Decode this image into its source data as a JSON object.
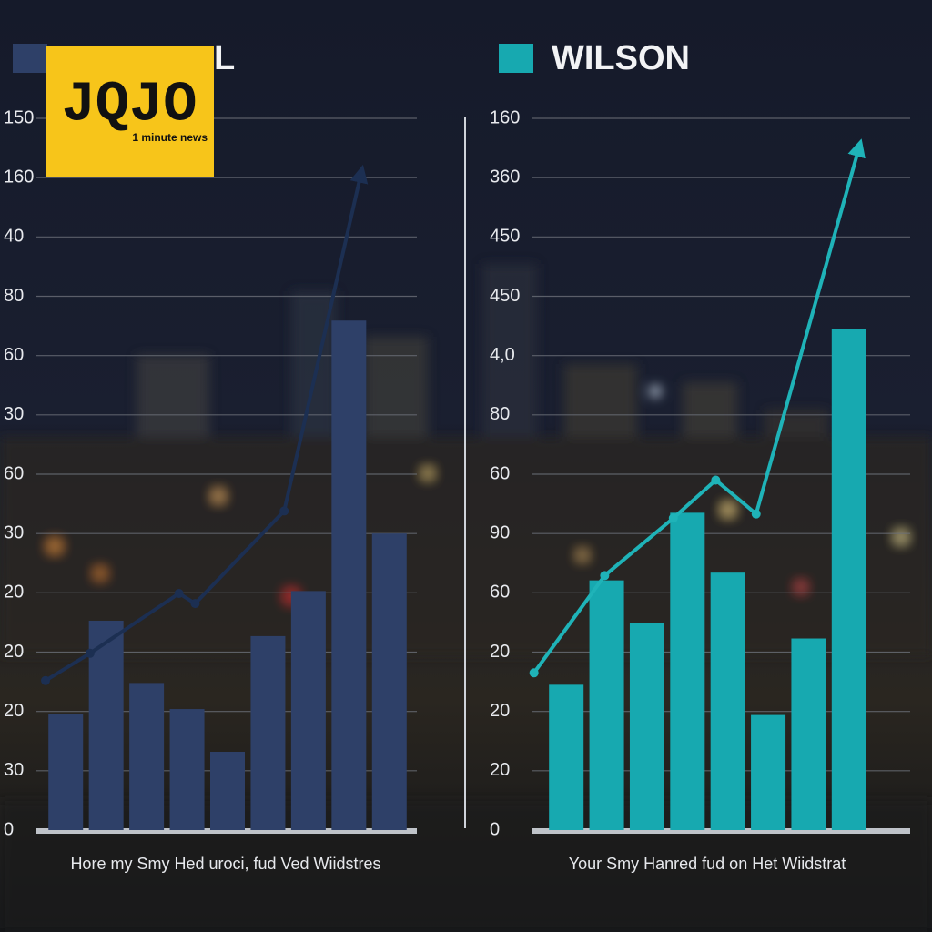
{
  "logo": {
    "text": "JQJO",
    "tagline": "1 minute news"
  },
  "chart_data": [
    {
      "type": "bar",
      "xlabel": "Hore my Smy Hed uroci, fud Ved Wiidstres",
      "categories": [
        null,
        null,
        null,
        null,
        null,
        null,
        null,
        null,
        null
      ],
      "ylim": [
        0,
        12
      ],
      "yticks": [
        {
          "value": 0,
          "label": "0"
        },
        {
          "value": 1,
          "label": "30"
        },
        {
          "value": 2,
          "label": "20"
        },
        {
          "value": 3,
          "label": "20"
        },
        {
          "value": 4,
          "label": "20"
        },
        {
          "value": 5,
          "label": "30"
        },
        {
          "value": 6,
          "label": "60"
        },
        {
          "value": 7,
          "label": "30"
        },
        {
          "value": 8,
          "label": "60"
        },
        {
          "value": 9,
          "label": "80"
        },
        {
          "value": 10,
          "label": "40"
        },
        {
          "value": 11,
          "label": "160"
        },
        {
          "value": 12,
          "label": "150"
        }
      ],
      "grid": true,
      "series": [
        {
          "name": "L",
          "color": "#2e4068",
          "values": [
            1.96,
            3.53,
            2.48,
            2.04,
            1.32,
            3.27,
            4.03,
            8.59,
            5.0
          ]
        },
        {
          "type": "line",
          "color": "#1c2f52",
          "x": [
            -0.5,
            0.6,
            2.8,
            3.2,
            5.4,
            7.3
          ],
          "values": [
            2.52,
            2.98,
            3.99,
            3.82,
            5.38,
            11.07
          ]
        }
      ]
    },
    {
      "type": "bar",
      "xlabel": "Your Smy Hanred fud  on Het Wiidstrat",
      "categories": [
        null,
        null,
        null,
        null,
        null,
        null,
        null,
        null
      ],
      "ylim": [
        0,
        12
      ],
      "yticks": [
        {
          "value": 0,
          "label": "0"
        },
        {
          "value": 1,
          "label": "20"
        },
        {
          "value": 2,
          "label": "20"
        },
        {
          "value": 3,
          "label": "20"
        },
        {
          "value": 4,
          "label": "60"
        },
        {
          "value": 5,
          "label": "90"
        },
        {
          "value": 6,
          "label": "60"
        },
        {
          "value": 7,
          "label": "80"
        },
        {
          "value": 8,
          "label": "4,0"
        },
        {
          "value": 9,
          "label": "450"
        },
        {
          "value": 10,
          "label": "450"
        },
        {
          "value": 11,
          "label": "360"
        },
        {
          "value": 12,
          "label": "160"
        }
      ],
      "grid": true,
      "series": [
        {
          "name": "WILSON",
          "color": "#17a9b0",
          "values": [
            2.45,
            4.21,
            3.49,
            5.35,
            4.34,
            1.94,
            3.23,
            8.44
          ]
        },
        {
          "type": "line",
          "color": "#1fb3b8",
          "x": [
            -0.8,
            0.95,
            2.65,
            3.7,
            4.7,
            7.25
          ],
          "values": [
            2.65,
            4.29,
            5.26,
            5.9,
            5.33,
            11.51
          ]
        }
      ]
    }
  ]
}
